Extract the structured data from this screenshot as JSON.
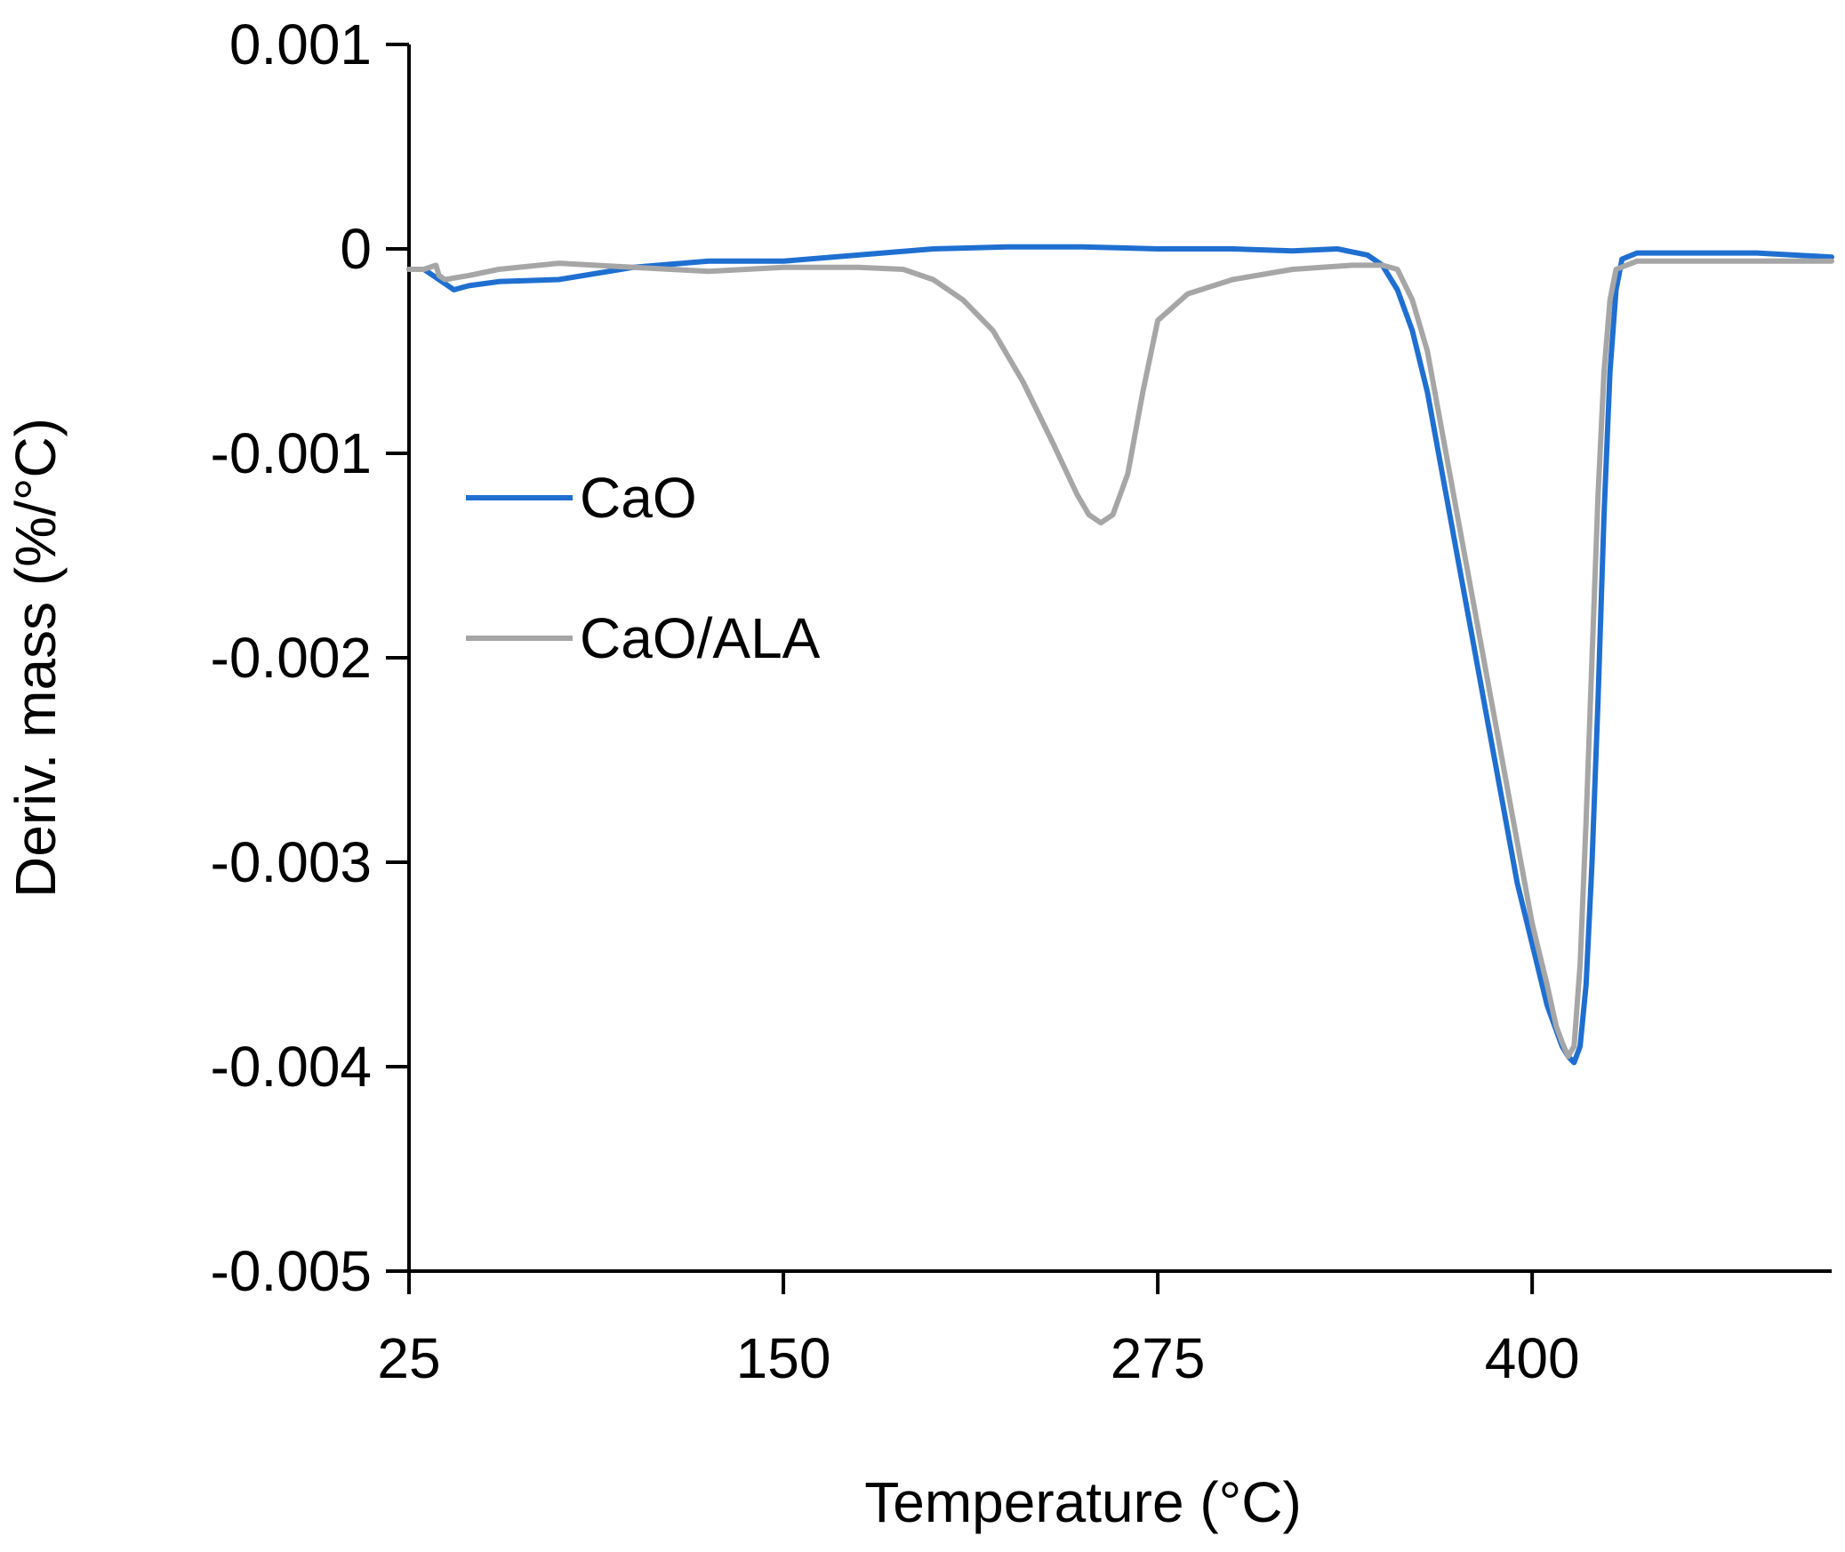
{
  "chart_data": {
    "type": "line",
    "title": "",
    "xlabel": "Temperature (°C)",
    "ylabel": "Deriv. mass (%/°C)",
    "xlim": [
      25,
      500
    ],
    "ylim": [
      -0.005,
      0.001
    ],
    "xticks": [
      25,
      150,
      275,
      400
    ],
    "xtick_labels": [
      "25",
      "150",
      "275",
      "400"
    ],
    "yticks": [
      0.001,
      0,
      -0.001,
      -0.002,
      -0.003,
      -0.004,
      -0.005
    ],
    "ytick_labels": [
      "0.001",
      "0",
      "-0.001",
      "-0.002",
      "-0.003",
      "-0.004",
      "-0.005"
    ],
    "grid": false,
    "legend_position": "upper-left",
    "series": [
      {
        "name": "CaO",
        "color": "#1f6fd1",
        "x": [
          25,
          30,
          35,
          40,
          45,
          55,
          75,
          100,
          125,
          150,
          175,
          200,
          225,
          250,
          275,
          300,
          320,
          335,
          345,
          350,
          355,
          360,
          365,
          370,
          375,
          380,
          385,
          390,
          395,
          400,
          405,
          410,
          412,
          414,
          416,
          418,
          420,
          422,
          424,
          426,
          428,
          430,
          435,
          450,
          475,
          500
        ],
        "y": [
          -0.0001,
          -0.0001,
          -0.00015,
          -0.0002,
          -0.00018,
          -0.00016,
          -0.00015,
          -9e-05,
          -6e-05,
          -6e-05,
          -3e-05,
          0.0,
          1e-05,
          1e-05,
          0.0,
          0.0,
          -1e-05,
          0.0,
          -3e-05,
          -8e-05,
          -0.0002,
          -0.0004,
          -0.0007,
          -0.0011,
          -0.0015,
          -0.0019,
          -0.0023,
          -0.0027,
          -0.0031,
          -0.0034,
          -0.0037,
          -0.0039,
          -0.00395,
          -0.00398,
          -0.0039,
          -0.0036,
          -0.003,
          -0.0022,
          -0.0013,
          -0.0006,
          -0.0002,
          -5e-05,
          -2e-05,
          -2e-05,
          -2e-05,
          -4e-05
        ]
      },
      {
        "name": "CaO/ALA",
        "color": "#a6a6a6",
        "x": [
          25,
          30,
          34,
          35,
          37,
          45,
          55,
          75,
          100,
          125,
          150,
          175,
          190,
          200,
          210,
          220,
          230,
          240,
          248,
          252,
          256,
          260,
          265,
          270,
          275,
          285,
          300,
          320,
          340,
          350,
          355,
          360,
          365,
          370,
          375,
          380,
          385,
          390,
          395,
          400,
          405,
          408,
          410,
          412,
          414,
          416,
          418,
          420,
          422,
          424,
          426,
          428,
          435,
          450,
          475,
          500
        ],
        "y": [
          -0.0001,
          -0.0001,
          -8e-05,
          -0.00013,
          -0.00015,
          -0.00013,
          -0.0001,
          -7e-05,
          -9e-05,
          -0.00011,
          -9e-05,
          -9e-05,
          -0.0001,
          -0.00015,
          -0.00025,
          -0.0004,
          -0.00065,
          -0.00095,
          -0.0012,
          -0.0013,
          -0.00134,
          -0.0013,
          -0.0011,
          -0.0007,
          -0.00035,
          -0.00022,
          -0.00015,
          -0.0001,
          -8e-05,
          -8e-05,
          -0.0001,
          -0.00025,
          -0.0005,
          -0.0009,
          -0.0013,
          -0.0017,
          -0.0021,
          -0.0025,
          -0.0029,
          -0.0033,
          -0.0036,
          -0.0038,
          -0.00388,
          -0.00395,
          -0.0039,
          -0.0035,
          -0.0028,
          -0.002,
          -0.0012,
          -0.0006,
          -0.00025,
          -0.0001,
          -6e-05,
          -6e-05,
          -6e-05,
          -6e-05
        ]
      }
    ]
  }
}
